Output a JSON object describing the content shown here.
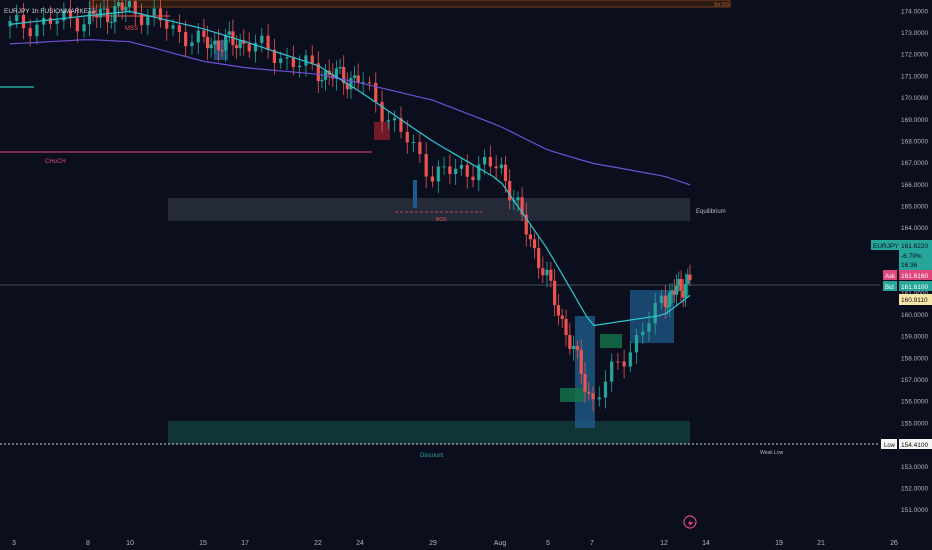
{
  "header": {
    "symbol_line": "EURJPY 1h FUSIONMARKETS"
  },
  "price_axis": {
    "ticks": [
      "174.0000",
      "173.0000",
      "172.0000",
      "171.0000",
      "170.0000",
      "169.0000",
      "168.0000",
      "167.0000",
      "166.0000",
      "165.0000",
      "164.0000",
      "161.0000",
      "160.0000",
      "159.0000",
      "158.0000",
      "157.0000",
      "156.0000",
      "155.0000",
      "154.0000",
      "153.0000",
      "152.0000",
      "151.0000"
    ]
  },
  "time_axis": {
    "ticks": [
      "3",
      "8",
      "10",
      "15",
      "17",
      "22",
      "24",
      "29",
      "Aug",
      "5",
      "7",
      "12",
      "14",
      "19",
      "21",
      "26"
    ]
  },
  "badges": {
    "symbol": "EURJPY",
    "last": "161.6220",
    "change": "-6.79%",
    "countdown": "16:36",
    "ask_label": "Ask",
    "ask": "161.6160",
    "bid_label": "Bid",
    "bid": "161.6100",
    "crosshair": "160.9110",
    "low_label": "Low",
    "low": "154.4100"
  },
  "annotations": {
    "mss": "MSS",
    "choch": "CHoCH",
    "equilibrium": "Equilibrium",
    "discount": "Discount",
    "weak_low": "Weak Low",
    "bos": "BOS",
    "tag_top": "Str.QG",
    "tag_mid": "BOS"
  },
  "colors": {
    "background": "#0b0f1d",
    "bull": "#26a69a",
    "bear": "#ef5350",
    "ma_fast": "#2ec7d6",
    "ma_slow": "#6e4fd4",
    "choch": "#e0467c",
    "equilibrium_zone": "#2a2f3d",
    "discount_zone": "#123a3a"
  },
  "chart_data": {
    "type": "line",
    "title": "EURJPY 1h FUSIONMARKETS",
    "ylim": [
      150.5,
      174.2
    ],
    "x": [
      "3",
      "8",
      "10",
      "15",
      "17",
      "22",
      "24",
      "29",
      "Aug",
      "5",
      "7",
      "12",
      "14"
    ],
    "series": [
      {
        "values": [
          173.3,
          173.7,
          174.2,
          172.5,
          172.6,
          171.2,
          170.8,
          166.5,
          166.9,
          161.5,
          156.0,
          160.7,
          161.62
        ]
      },
      {
        "values": [
          173.4,
          173.8,
          174.0,
          173.2,
          172.6,
          171.5,
          170.3,
          168.0,
          166.2,
          163.0,
          159.5,
          160.0,
          160.9
        ]
      },
      {
        "values": [
          172.5,
          172.7,
          172.6,
          171.7,
          171.4,
          171.1,
          170.7,
          169.9,
          168.7,
          167.6,
          167.0,
          166.4,
          166.0
        ]
      }
    ]
  }
}
